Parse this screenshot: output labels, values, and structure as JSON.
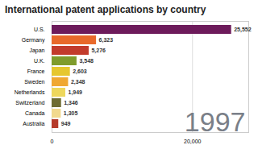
{
  "chart_data": {
    "type": "bar",
    "orientation": "horizontal",
    "title": "International patent applications by country",
    "categories": [
      "U.S.",
      "Germany",
      "Japan",
      "U.K.",
      "France",
      "Sweden",
      "Netherlands",
      "Switzerland",
      "Canada",
      "Australia"
    ],
    "values": [
      25552,
      6323,
      5276,
      3548,
      2603,
      2348,
      1949,
      1346,
      1305,
      949
    ],
    "value_labels": [
      "25,552",
      "6,323",
      "5,276",
      "3,548",
      "2,603",
      "2,348",
      "1,949",
      "1,346",
      "1,305",
      "949"
    ],
    "colors": [
      "#6d1b5b",
      "#e8692a",
      "#c23b2c",
      "#7f9c2c",
      "#e6c72e",
      "#f0a832",
      "#eed75c",
      "#6e6c32",
      "#f1d98e",
      "#b53b2b"
    ],
    "xlim": [
      0,
      28000
    ],
    "xticks": [
      0,
      {
        "value": 20000,
        "label": "20,000"
      }
    ],
    "grid": true,
    "data_labels": true,
    "annotation": "1997"
  }
}
